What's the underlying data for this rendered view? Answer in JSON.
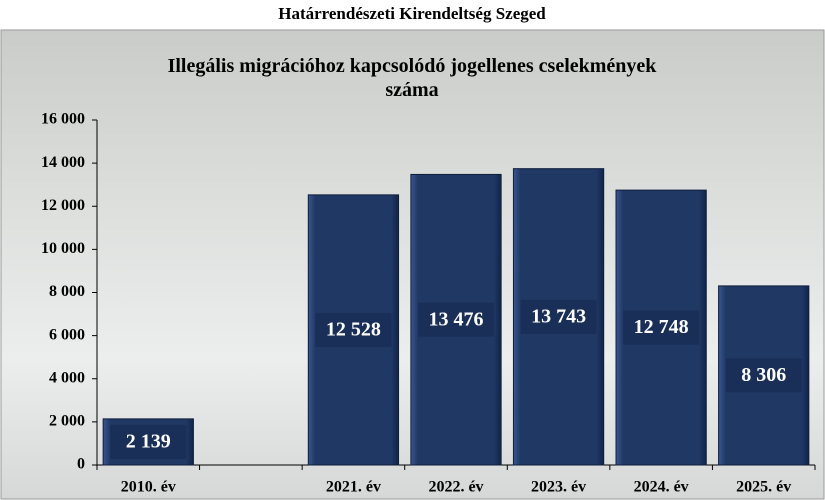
{
  "page_title": "Határrendészeti Kirendeltség Szeged",
  "chart_data": {
    "type": "bar",
    "title": "Illegális migrációhoz kapcsolódó jogellenes cselekmények száma",
    "categories": [
      "2010. év",
      null,
      "2021. év",
      "2022. év",
      "2023. év",
      "2024. év",
      "2025. év"
    ],
    "values": [
      2139,
      null,
      12528,
      13476,
      13743,
      12748,
      8306
    ],
    "value_labels": [
      "2 139",
      null,
      "12 528",
      "13 476",
      "13 743",
      "12 748",
      "8 306"
    ],
    "color": "#1f3864",
    "ylim": [
      0,
      16000
    ],
    "yticks": [
      0,
      {
        "value": 2000,
        "label": "2 000"
      },
      {
        "value": 4000,
        "label": "4 000"
      },
      {
        "value": 6000,
        "label": "6 000"
      },
      {
        "value": 8000,
        "label": "8 000"
      },
      {
        "value": 10000,
        "label": "10 000"
      },
      {
        "value": 12000,
        "label": "12 000"
      },
      {
        "value": 14000,
        "label": "14 000"
      },
      {
        "value": 16000,
        "label": "16 000"
      }
    ],
    "grid": false
  }
}
